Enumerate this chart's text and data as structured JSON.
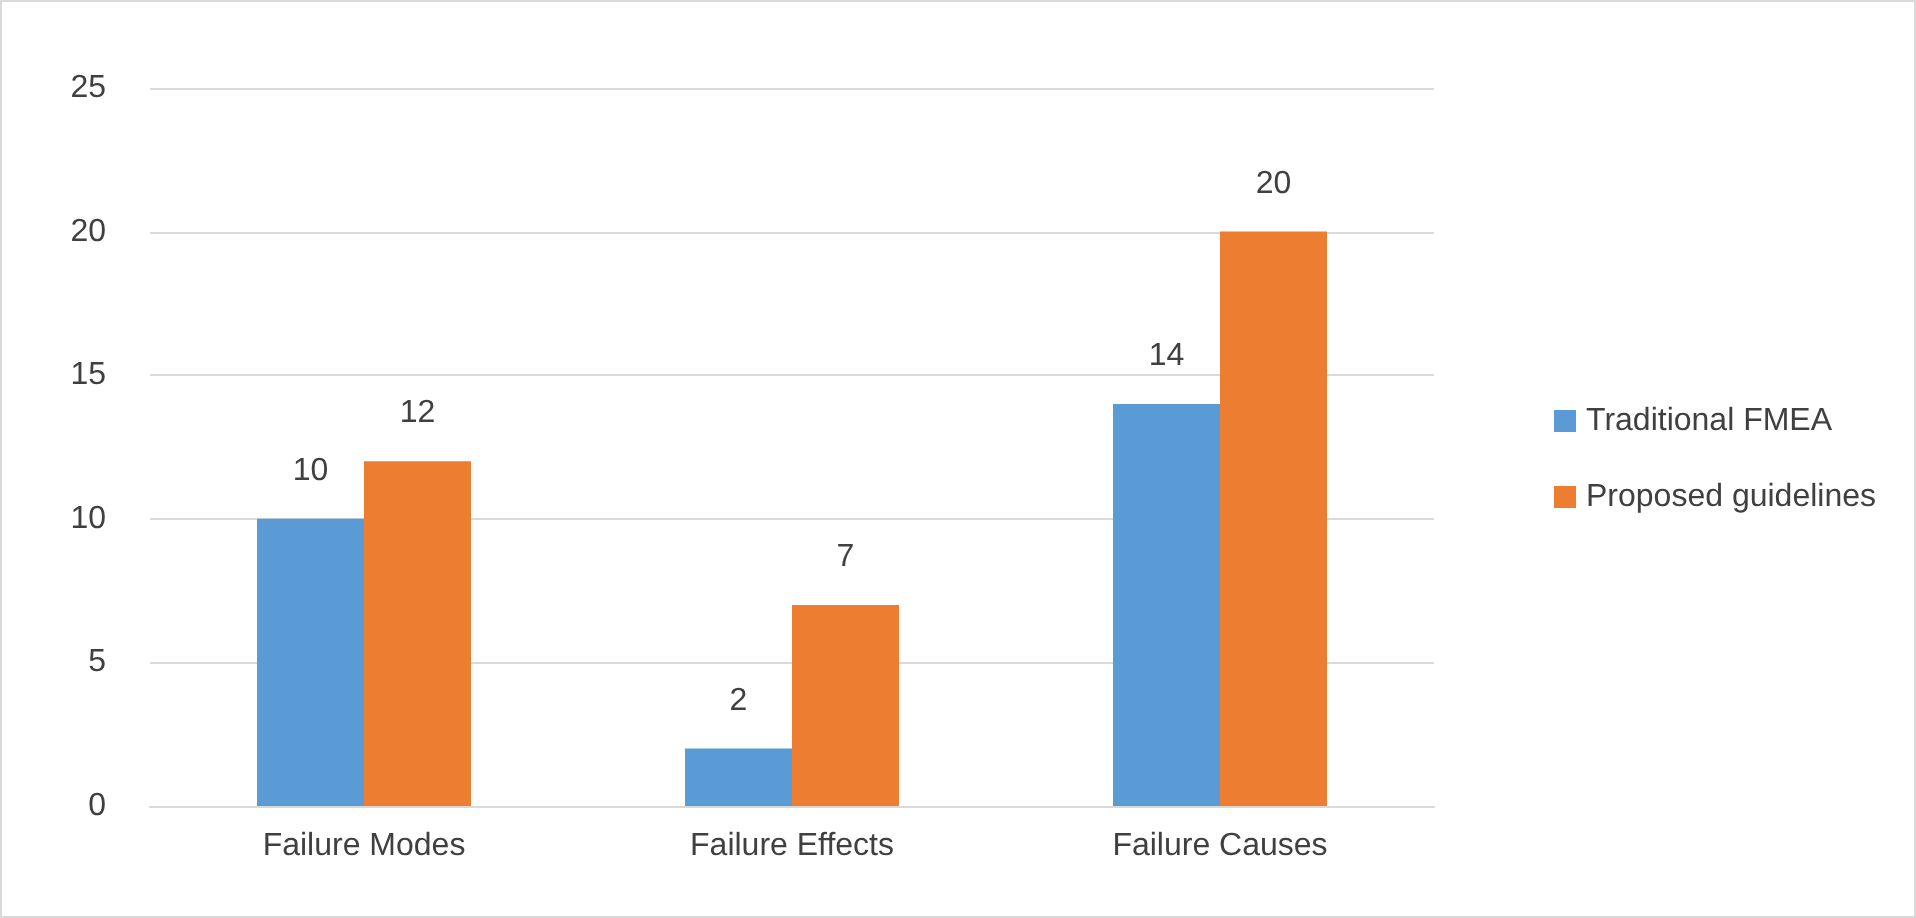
{
  "chart_data": {
    "type": "bar",
    "categories": [
      "Failure Modes",
      "Failure Effects",
      "Failure Causes"
    ],
    "series": [
      {
        "name": "Traditional FMEA",
        "color": "#5b9bd5",
        "values": [
          10,
          2,
          14
        ]
      },
      {
        "name": "Proposed guidelines",
        "color": "#ed7d31",
        "values": [
          12,
          7,
          20
        ]
      }
    ],
    "ylim": [
      0,
      25
    ],
    "yticks": [
      0,
      5,
      10,
      15,
      20,
      25
    ],
    "grid": "y",
    "legend": "right",
    "data_labels": true
  }
}
